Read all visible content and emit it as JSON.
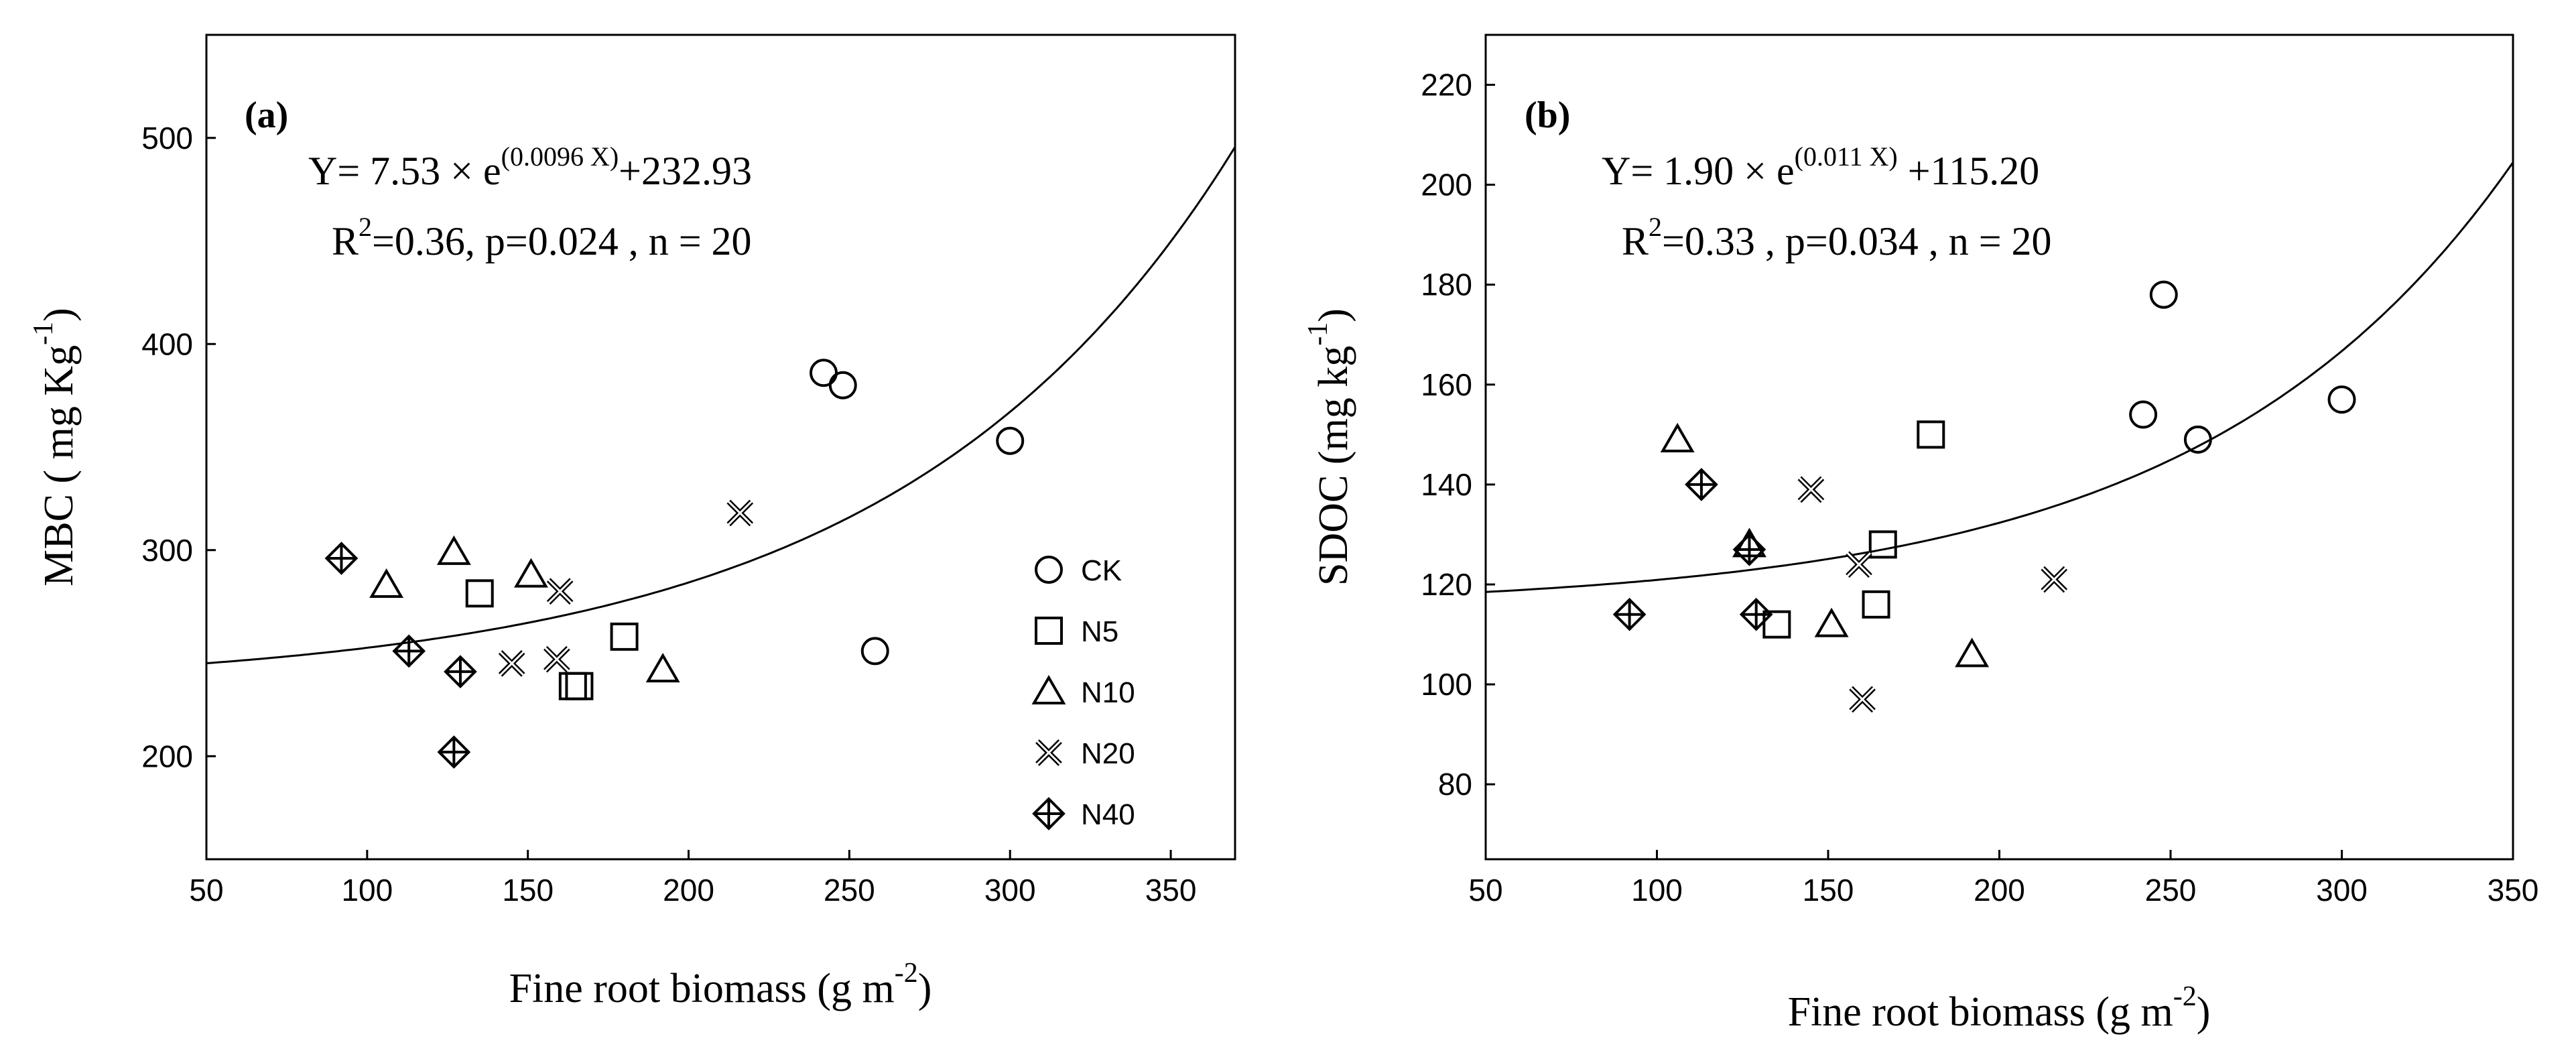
{
  "chart_data": [
    {
      "type": "scatter",
      "panel_label": "(a)",
      "ylabel": {
        "main": "MBC ( mg Kg",
        "sup": "-1",
        "close": ")"
      },
      "xlabel": {
        "main": "Fine root biomass (g m",
        "sup": "-2",
        "close": ")"
      },
      "xlim": [
        50,
        370
      ],
      "ylim": [
        150,
        550
      ],
      "xticks": [
        50,
        100,
        150,
        200,
        250,
        300,
        350
      ],
      "yticks": [
        200,
        300,
        400,
        500
      ],
      "equation": {
        "pre": "Y= 7.53 ×  e",
        "sup": "(0.0096 X)",
        "post": "+232.93"
      },
      "stats": {
        "pre": "R",
        "sup": "2",
        "post": "=0.36, p=0.024 , n = 20"
      },
      "fit": {
        "a": 7.53,
        "b": 0.0096,
        "c": 232.93
      },
      "legend": [
        {
          "symbol": "circle",
          "label": "CK"
        },
        {
          "symbol": "square",
          "label": "N5"
        },
        {
          "symbol": "triangle",
          "label": "N10"
        },
        {
          "symbol": "x",
          "label": "N20"
        },
        {
          "symbol": "diamond",
          "label": "N40"
        }
      ],
      "series": [
        {
          "name": "CK",
          "symbol": "circle",
          "points": [
            [
              242,
              386
            ],
            [
              248,
              380
            ],
            [
              300,
              353
            ],
            [
              258,
              251
            ]
          ]
        },
        {
          "name": "N5",
          "symbol": "square",
          "points": [
            [
              135,
              279
            ],
            [
              180,
              258
            ],
            [
              164,
              234
            ],
            [
              166,
              234
            ]
          ]
        },
        {
          "name": "N10",
          "symbol": "triangle",
          "points": [
            [
              106,
              283
            ],
            [
              127,
              299
            ],
            [
              151,
              288
            ],
            [
              192,
              242
            ]
          ]
        },
        {
          "name": "N20",
          "symbol": "x",
          "points": [
            [
              216,
              318
            ],
            [
              160,
              280
            ],
            [
              145,
              245
            ],
            [
              159,
              247
            ]
          ]
        },
        {
          "name": "N40",
          "symbol": "diamond",
          "points": [
            [
              92,
              296
            ],
            [
              113,
              251
            ],
            [
              129,
              241
            ],
            [
              127,
              202
            ]
          ]
        }
      ]
    },
    {
      "type": "scatter",
      "panel_label": "(b)",
      "ylabel": {
        "main": "SDOC (mg kg",
        "sup": "-1",
        "close": ")"
      },
      "xlabel": {
        "main": "Fine root biomass (g m",
        "sup": "-2",
        "close": ")"
      },
      "xlim": [
        50,
        350
      ],
      "ylim": [
        65,
        230
      ],
      "xticks": [
        50,
        100,
        150,
        200,
        250,
        300,
        350
      ],
      "yticks": [
        80,
        100,
        120,
        140,
        160,
        180,
        200,
        220
      ],
      "equation": {
        "pre": "Y= 1.90 ×  e",
        "sup": "(0.011 X)",
        "post": " +115.20"
      },
      "stats": {
        "pre": "R",
        "sup": "2",
        "post": "=0.33 , p=0.034 , n = 20"
      },
      "fit": {
        "a": 1.9,
        "b": 0.011,
        "c": 115.2
      },
      "series": [
        {
          "name": "CK",
          "symbol": "circle",
          "points": [
            [
              248,
              178
            ],
            [
              242,
              154
            ],
            [
              258,
              149
            ],
            [
              300,
              157
            ]
          ]
        },
        {
          "name": "N5",
          "symbol": "square",
          "points": [
            [
              180,
              150
            ],
            [
              166,
              128
            ],
            [
              164,
              116
            ],
            [
              135,
              112
            ]
          ]
        },
        {
          "name": "N10",
          "symbol": "triangle",
          "points": [
            [
              106,
              149
            ],
            [
              127,
              128
            ],
            [
              151,
              112
            ],
            [
              192,
              106
            ]
          ]
        },
        {
          "name": "N20",
          "symbol": "x",
          "points": [
            [
              145,
              139
            ],
            [
              159,
              124
            ],
            [
              216,
              121
            ],
            [
              160,
              97
            ]
          ]
        },
        {
          "name": "N40",
          "symbol": "diamond",
          "points": [
            [
              92,
              114
            ],
            [
              113,
              140
            ],
            [
              127,
              127
            ],
            [
              129,
              114
            ]
          ]
        }
      ]
    }
  ]
}
